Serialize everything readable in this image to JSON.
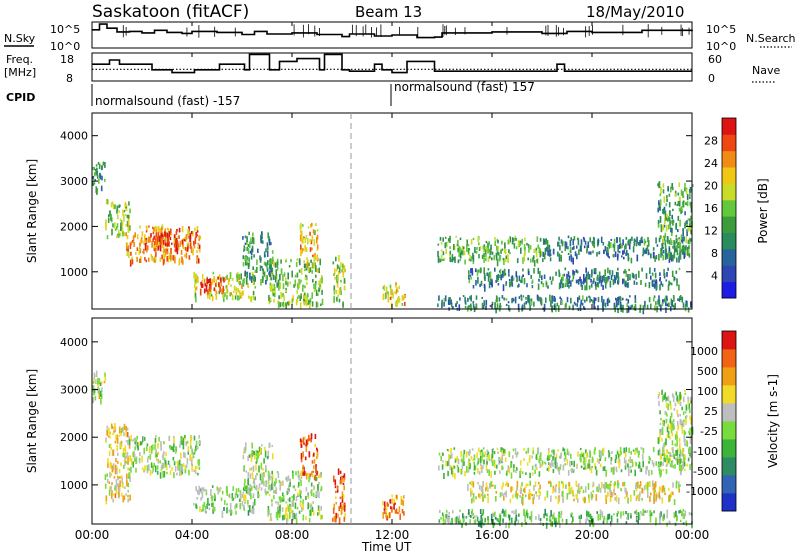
{
  "header": {
    "station": "Saskatoon (fitACF)",
    "beam": "Beam 13",
    "date": "18/May/2010"
  },
  "strip_labels": {
    "nsky": "N.Sky",
    "nsearch": "N.Search",
    "freq_line1": "Freq.",
    "freq_line2": "[MHz]",
    "nave": "Nave",
    "cpid": "CPID"
  },
  "cpid_segments": [
    {
      "label": "normalsound (fast) -157"
    },
    {
      "label": "normalsound (fast) 157"
    }
  ],
  "chart_data": [
    {
      "type": "line",
      "panel": "noise",
      "left_tick_labels": [
        "10^5",
        "10^0"
      ],
      "right_tick_labels": [
        "10^5",
        "10^0"
      ],
      "x": [
        0,
        0.3,
        0.6,
        1,
        1.5,
        2,
        2.5,
        3,
        3.6,
        4,
        5,
        6,
        6.5,
        7,
        8,
        9,
        10,
        10.3,
        11.3,
        12,
        13,
        13.7,
        14,
        16,
        18,
        19,
        20,
        22,
        24
      ],
      "series": [
        {
          "name": "N.Sky",
          "values": [
            3.5,
            4.6,
            3.8,
            3.1,
            3.2,
            2.9,
            3.4,
            3.0,
            2.8,
            3.2,
            3.0,
            2.6,
            3.2,
            2.7,
            2.9,
            2.6,
            2.2,
            2.7,
            2.3,
            2.5,
            2.0,
            2.1,
            2.9,
            3.1,
            2.8,
            3.2,
            3.0,
            3.4,
            3.2
          ]
        }
      ]
    },
    {
      "type": "line",
      "panel": "frequency",
      "left_tick_labels": [
        "18",
        "8"
      ],
      "right_tick_labels": [
        "60",
        "0"
      ],
      "ylim_left": [
        8,
        18
      ],
      "ylim_right": [
        0,
        60
      ],
      "x": [
        0,
        0.7,
        1.1,
        2.4,
        3.2,
        4.1,
        5.1,
        6.1,
        6.3,
        7.1,
        7.5,
        8.2,
        9.1,
        9.3,
        10.0,
        10.3,
        11.3,
        11.6,
        12.0,
        12.6,
        13.7,
        18.6,
        18.9,
        24
      ],
      "series": [
        {
          "name": "Freq.",
          "values": [
            14,
            15.5,
            14,
            12,
            11,
            12,
            14,
            12,
            17.5,
            12,
            15,
            16,
            12,
            17.5,
            12,
            11.5,
            14,
            12,
            11,
            15,
            11.5,
            14,
            11.5,
            11.5
          ]
        },
        {
          "name": "Nave",
          "values": [
            25,
            25,
            25,
            25,
            25,
            25,
            25,
            25,
            25,
            25,
            25,
            25,
            25,
            25,
            25,
            25,
            25,
            25,
            25,
            25,
            25,
            25,
            25,
            25
          ]
        }
      ]
    },
    {
      "type": "heatmap",
      "panel": "power",
      "ylabel": "Slant Range [km]",
      "yticks": [
        "1000",
        "2000",
        "3000",
        "4000"
      ],
      "colorbar_label": "Power [dB]",
      "colorbar_ticks": [
        "4",
        "8",
        "12",
        "16",
        "20",
        "24",
        "28"
      ],
      "colorbar_colors": [
        "#1c1ce6",
        "#2e46b4",
        "#28649c",
        "#2a8c5c",
        "#3c9c3c",
        "#64c83c",
        "#c8dc28",
        "#f0c814",
        "#f08c14",
        "#f04614",
        "#dc1414"
      ],
      "ylim": [
        180,
        4500
      ],
      "regions": [
        {
          "t0": 0.0,
          "t1": 0.5,
          "r0": 2800,
          "r1": 3450,
          "level": 0.35
        },
        {
          "t0": 0.5,
          "t1": 1.5,
          "r0": 1800,
          "r1": 2600,
          "level": 0.5
        },
        {
          "t0": 1.3,
          "t1": 4.3,
          "r0": 1250,
          "r1": 2050,
          "level": 0.75
        },
        {
          "t0": 2.0,
          "t1": 4.0,
          "r0": 1500,
          "r1": 1900,
          "level": 0.9
        },
        {
          "t0": 4.0,
          "t1": 6.5,
          "r0": 450,
          "r1": 1000,
          "level": 0.6
        },
        {
          "t0": 4.3,
          "t1": 5.3,
          "r0": 600,
          "r1": 900,
          "level": 0.85
        },
        {
          "t0": 6.0,
          "t1": 7.2,
          "r0": 800,
          "r1": 1900,
          "level": 0.35
        },
        {
          "t0": 7.0,
          "t1": 9.2,
          "r0": 300,
          "r1": 1300,
          "level": 0.5
        },
        {
          "t0": 8.3,
          "t1": 9.0,
          "r0": 1200,
          "r1": 2100,
          "level": 0.7
        },
        {
          "t0": 9.6,
          "t1": 10.1,
          "r0": 300,
          "r1": 1400,
          "level": 0.55
        },
        {
          "t0": 11.6,
          "t1": 12.5,
          "r0": 300,
          "r1": 800,
          "level": 0.7
        },
        {
          "t0": 13.8,
          "t1": 24.0,
          "r0": 200,
          "r1": 500,
          "level": 0.3
        },
        {
          "t0": 13.8,
          "t1": 18.0,
          "r0": 1250,
          "r1": 1800,
          "level": 0.45
        },
        {
          "t0": 15.0,
          "t1": 23.5,
          "r0": 700,
          "r1": 1100,
          "level": 0.3
        },
        {
          "t0": 18.0,
          "t1": 23.7,
          "r0": 1300,
          "r1": 1800,
          "level": 0.3
        },
        {
          "t0": 22.6,
          "t1": 24.0,
          "r0": 1400,
          "r1": 3000,
          "level": 0.4
        }
      ]
    },
    {
      "type": "heatmap",
      "panel": "velocity",
      "ylabel": "Slant Range [km]",
      "yticks": [
        "1000",
        "2000",
        "3000",
        "4000"
      ],
      "colorbar_label": "Velocity [m s-1]",
      "colorbar_ticks": [
        "1000",
        "500",
        "100",
        "25",
        "-25",
        "-100",
        "-500",
        "-1000"
      ],
      "colorbar_colors": [
        "#1e32c8",
        "#3264b4",
        "#2e8c64",
        "#3cb43c",
        "#78dc3c",
        "#bebebe",
        "#f0dc28",
        "#f0a014",
        "#f06414",
        "#dc1414"
      ],
      "ylim": [
        180,
        4500
      ],
      "regions": [
        {
          "t0": 0.0,
          "t1": 0.5,
          "r0": 2800,
          "r1": 3450,
          "level": 0.55
        },
        {
          "t0": 0.5,
          "t1": 1.5,
          "r0": 700,
          "r1": 2300,
          "level": 0.65
        },
        {
          "t0": 1.3,
          "t1": 4.3,
          "r0": 1250,
          "r1": 2050,
          "level": 0.5
        },
        {
          "t0": 4.0,
          "t1": 6.5,
          "r0": 450,
          "r1": 1000,
          "level": 0.45
        },
        {
          "t0": 6.0,
          "t1": 7.2,
          "r0": 800,
          "r1": 1900,
          "level": 0.5
        },
        {
          "t0": 7.0,
          "t1": 9.2,
          "r0": 300,
          "r1": 1300,
          "level": 0.5
        },
        {
          "t0": 8.3,
          "t1": 9.0,
          "r0": 1200,
          "r1": 2100,
          "level": 0.85
        },
        {
          "t0": 9.6,
          "t1": 10.1,
          "r0": 300,
          "r1": 1400,
          "level": 0.85
        },
        {
          "t0": 11.6,
          "t1": 12.5,
          "r0": 300,
          "r1": 800,
          "level": 0.8
        },
        {
          "t0": 13.8,
          "t1": 24.0,
          "r0": 200,
          "r1": 500,
          "level": 0.4
        },
        {
          "t0": 13.8,
          "t1": 18.0,
          "r0": 1250,
          "r1": 1800,
          "level": 0.5
        },
        {
          "t0": 15.0,
          "t1": 23.5,
          "r0": 700,
          "r1": 1100,
          "level": 0.6
        },
        {
          "t0": 18.0,
          "t1": 23.7,
          "r0": 1300,
          "r1": 1800,
          "level": 0.5
        },
        {
          "t0": 22.6,
          "t1": 24.0,
          "r0": 1400,
          "r1": 3000,
          "level": 0.5
        }
      ]
    }
  ],
  "xaxis": {
    "label": "Time UT",
    "ticks": [
      "00:00",
      "04:00",
      "08:00",
      "12:00",
      "16:00",
      "20:00",
      "00:00"
    ]
  }
}
